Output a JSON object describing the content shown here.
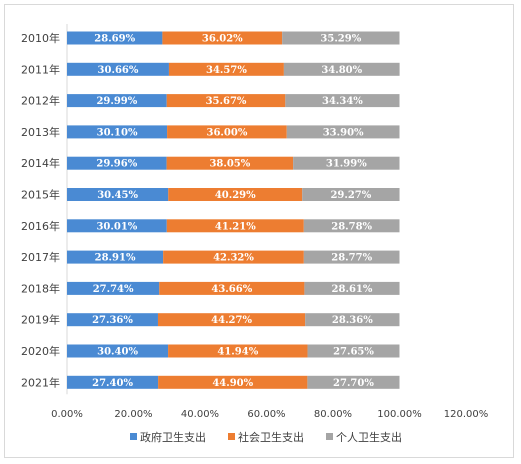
{
  "chart_data": {
    "type": "bar",
    "orientation": "horizontal",
    "stacked": true,
    "categories": [
      "2010年",
      "2011年",
      "2012年",
      "2013年",
      "2014年",
      "2015年",
      "2016年",
      "2017年",
      "2018年",
      "2019年",
      "2020年",
      "2021年"
    ],
    "series": [
      {
        "name": "政府卫生支出",
        "color": "#4a8ad3",
        "values": [
          28.69,
          30.66,
          29.99,
          30.1,
          29.96,
          30.45,
          30.01,
          28.91,
          27.74,
          27.36,
          30.4,
          27.4
        ],
        "labels": [
          "28.69%",
          "30.66%",
          "29.99%",
          "30.10%",
          "29.96%",
          "30.45%",
          "30.01%",
          "28.91%",
          "27.74%",
          "27.36%",
          "30.40%",
          "27.40%"
        ]
      },
      {
        "name": "社会卫生支出",
        "color": "#ed7d31",
        "values": [
          36.02,
          34.57,
          35.67,
          36.0,
          38.05,
          40.29,
          41.21,
          42.32,
          43.66,
          44.27,
          41.94,
          44.9
        ],
        "labels": [
          "36.02%",
          "34.57%",
          "35.67%",
          "36.00%",
          "38.05%",
          "40.29%",
          "41.21%",
          "42.32%",
          "43.66%",
          "44.27%",
          "41.94%",
          "44.90%"
        ]
      },
      {
        "name": "个人卫生支出",
        "color": "#a5a5a5",
        "values": [
          35.29,
          34.8,
          34.34,
          33.9,
          31.99,
          29.27,
          28.78,
          28.77,
          28.61,
          28.36,
          27.65,
          27.7
        ],
        "labels": [
          "35.29%",
          "34.80%",
          "34.34%",
          "33.90%",
          "31.99%",
          "29.27%",
          "28.78%",
          "28.77%",
          "28.61%",
          "28.36%",
          "27.65%",
          "27.70%"
        ]
      }
    ],
    "xlim": [
      0,
      120
    ],
    "xticks": [
      "0.00%",
      "20.00%",
      "40.00%",
      "60.00%",
      "80.00%",
      "100.00%",
      "120.00%"
    ],
    "grid": false,
    "legend_position": "bottom"
  }
}
